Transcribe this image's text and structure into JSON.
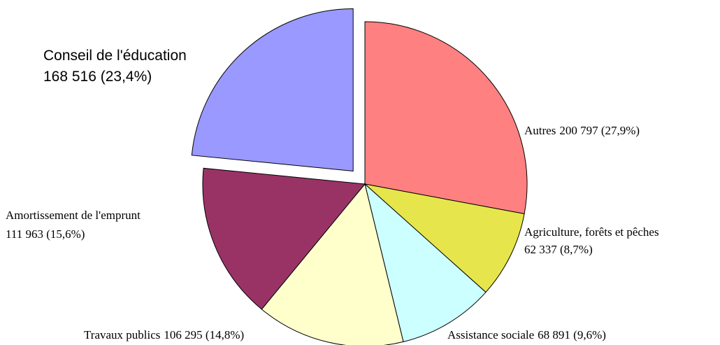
{
  "chart_data": {
    "type": "pie",
    "categories": [
      "Autres",
      "Agriculture, forêts et pêches",
      "Assistance sociale",
      "Travaux publics",
      "Amortissement de l'emprunt",
      "Conseil de l'éducation"
    ],
    "values": [
      200797,
      62337,
      68891,
      106295,
      111963,
      168516
    ],
    "value_labels": [
      "200 797 (27,9%)",
      "62 337 (8,7%)",
      "68 891 (9,6%)",
      "106 295 (14,8%)",
      "111 963 (15,6%)",
      "168 516 (23,4%)"
    ],
    "colors": [
      "#ff8080",
      "#e6e64c",
      "#ccffff",
      "#ffffcc",
      "#993366",
      "#9999ff"
    ],
    "exploded": [
      5
    ]
  }
}
